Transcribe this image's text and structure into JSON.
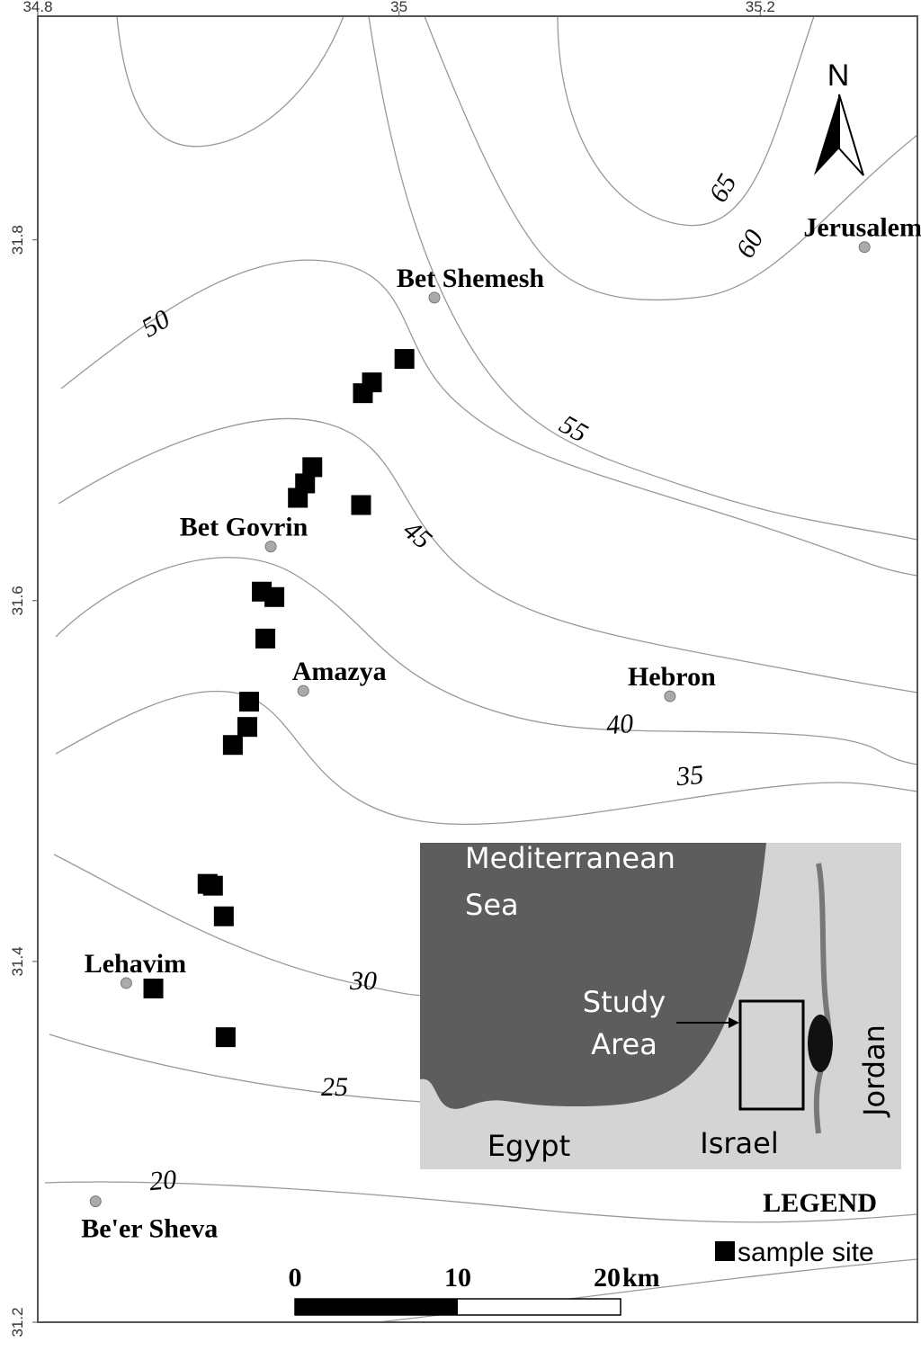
{
  "map": {
    "lon_ticks": [
      34.8,
      35,
      35.2
    ],
    "lat_ticks": [
      31.8,
      31.6,
      31.4,
      31.2
    ],
    "lonlim": [
      34.8,
      35.287
    ],
    "latlim": [
      31.2,
      31.924
    ],
    "north_label": "N",
    "contour_labels": [
      20,
      25,
      30,
      35,
      40,
      45,
      50,
      55,
      60,
      65
    ],
    "places": [
      {
        "name": "Bet Shemesh",
        "lon": 35.0196,
        "lat": 31.768
      },
      {
        "name": "Jerusalem",
        "lon": 35.2577,
        "lat": 31.796
      },
      {
        "name": "Bet Govrin",
        "lon": 34.929,
        "lat": 31.63
      },
      {
        "name": "Amazya",
        "lon": 34.947,
        "lat": 31.55
      },
      {
        "name": "Hebron",
        "lon": 35.15,
        "lat": 31.547
      },
      {
        "name": "Lehavim",
        "lon": 34.849,
        "lat": 31.388
      },
      {
        "name": "Be'er Sheva",
        "lon": 34.832,
        "lat": 31.267
      }
    ],
    "sites": [
      {
        "lon": 35.003,
        "lat": 31.734
      },
      {
        "lon": 34.985,
        "lat": 31.721
      },
      {
        "lon": 34.98,
        "lat": 31.715
      },
      {
        "lon": 34.952,
        "lat": 31.674
      },
      {
        "lon": 34.948,
        "lat": 31.665
      },
      {
        "lon": 34.944,
        "lat": 31.657
      },
      {
        "lon": 34.979,
        "lat": 31.653
      },
      {
        "lon": 34.924,
        "lat": 31.605
      },
      {
        "lon": 34.931,
        "lat": 31.602
      },
      {
        "lon": 34.926,
        "lat": 31.579
      },
      {
        "lon": 34.917,
        "lat": 31.544
      },
      {
        "lon": 34.916,
        "lat": 31.53
      },
      {
        "lon": 34.908,
        "lat": 31.52
      },
      {
        "lon": 34.894,
        "lat": 31.443
      },
      {
        "lon": 34.897,
        "lat": 31.442
      },
      {
        "lon": 34.903,
        "lat": 31.425
      },
      {
        "lon": 34.864,
        "lat": 31.385
      },
      {
        "lon": 34.904,
        "lat": 31.358
      }
    ],
    "legend": {
      "title": "LEGEND",
      "item": "sample site"
    },
    "scale": {
      "ticks": [
        0,
        10,
        20
      ],
      "unit": "km"
    },
    "inset": {
      "sea": [
        "Mediterranean",
        "Sea"
      ],
      "study": [
        "Study",
        "Area"
      ],
      "egypt": "Egypt",
      "israel": "Israel",
      "jordan": "Jordan"
    }
  }
}
